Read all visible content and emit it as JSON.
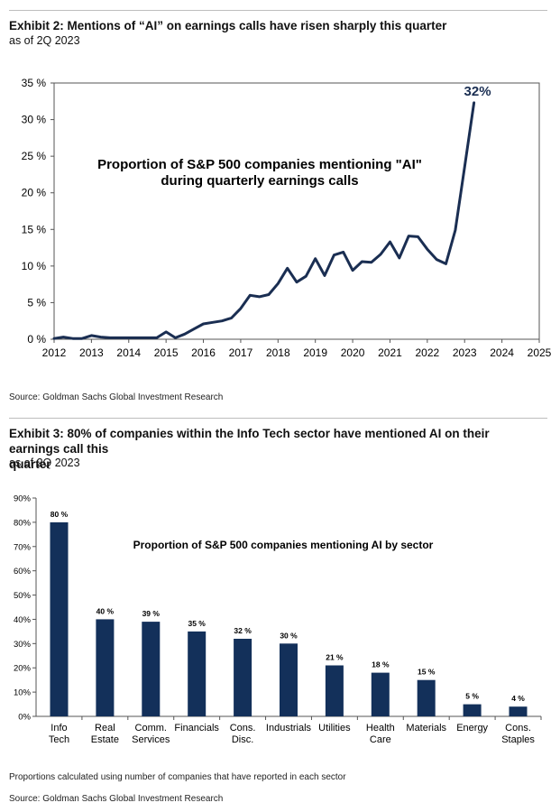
{
  "exhibit2": {
    "title": "Exhibit 2: Mentions of “AI” on earnings calls have risen sharply this quarter",
    "subtitle": "as of 2Q 2023",
    "source": "Source: Goldman Sachs Global Investment Research"
  },
  "exhibit3": {
    "title_line1": "Exhibit 3: 80% of companies within the Info Tech sector have mentioned AI on their earnings call this",
    "title_line2": "quarter",
    "subtitle": "as of 2Q 2023",
    "note": "Proportions calculated using number of companies that have reported in each sector",
    "source": "Source: Goldman Sachs Global Investment Research"
  },
  "colors": {
    "series": "#1a2e52",
    "bar": "#13305a",
    "frame": "#555555"
  },
  "chart_data": [
    {
      "type": "line",
      "title_lines": [
        "Proportion of S&P 500 companies mentioning \"AI\"",
        "during quarterly earnings calls"
      ],
      "annotation": "32%",
      "xlim": [
        2012,
        2025
      ],
      "ylim": [
        0,
        35
      ],
      "x_ticks": [
        "2012",
        "2013",
        "2014",
        "2015",
        "2016",
        "2017",
        "2018",
        "2019",
        "2020",
        "2021",
        "2022",
        "2023",
        "2024",
        "2025"
      ],
      "y_ticks": [
        "0 %",
        "5 %",
        "10 %",
        "15 %",
        "20 %",
        "25 %",
        "30 %",
        "35 %"
      ],
      "grid": false,
      "series": [
        {
          "x": [
            2012.0,
            2012.25,
            2012.5,
            2012.75,
            2013.0,
            2013.25,
            2013.5,
            2013.75,
            2014.0,
            2014.25,
            2014.5,
            2014.75,
            2015.0,
            2015.25,
            2015.5,
            2015.75,
            2016.0,
            2016.25,
            2016.5,
            2016.75,
            2017.0,
            2017.25,
            2017.5,
            2017.75,
            2018.0,
            2018.25,
            2018.5,
            2018.75,
            2019.0,
            2019.25,
            2019.5,
            2019.75,
            2020.0,
            2020.25,
            2020.5,
            2020.75,
            2021.0,
            2021.25,
            2021.5,
            2021.75,
            2022.0,
            2022.25,
            2022.5,
            2022.75,
            2023.0,
            2023.25
          ],
          "y": [
            0.1,
            0.3,
            0.1,
            0.1,
            0.5,
            0.3,
            0.2,
            0.2,
            0.2,
            0.2,
            0.2,
            0.2,
            1.0,
            0.2,
            0.7,
            1.4,
            2.1,
            2.3,
            2.5,
            2.9,
            4.2,
            6.0,
            5.8,
            6.1,
            7.6,
            9.7,
            7.8,
            8.6,
            11.0,
            8.7,
            11.5,
            11.9,
            9.4,
            10.6,
            10.5,
            11.6,
            13.3,
            11.1,
            14.1,
            14.0,
            12.3,
            10.9,
            10.3,
            14.9,
            23.5,
            32.3
          ]
        }
      ]
    },
    {
      "type": "bar",
      "title": "Proportion of S&P 500 companies mentioning AI by sector",
      "categories": [
        [
          "Info",
          "Tech"
        ],
        [
          "Real",
          "Estate"
        ],
        [
          "Comm.",
          "Services"
        ],
        [
          "Financials"
        ],
        [
          "Cons.",
          "Disc."
        ],
        [
          "Industrials"
        ],
        [
          "Utilities"
        ],
        [
          "Health",
          "Care"
        ],
        [
          "Materials"
        ],
        [
          "Energy"
        ],
        [
          "Cons.",
          "Staples"
        ]
      ],
      "values": [
        80,
        40,
        39,
        35,
        32,
        30,
        21,
        18,
        15,
        5,
        4
      ],
      "value_labels": [
        "80 %",
        "40 %",
        "39 %",
        "35 %",
        "32 %",
        "30 %",
        "21 %",
        "18 %",
        "15 %",
        "5 %",
        "4 %"
      ],
      "ylim": [
        0,
        90
      ],
      "y_ticks": [
        "0%",
        "10%",
        "20%",
        "30%",
        "40%",
        "50%",
        "60%",
        "70%",
        "80%",
        "90%"
      ],
      "grid": false
    }
  ]
}
